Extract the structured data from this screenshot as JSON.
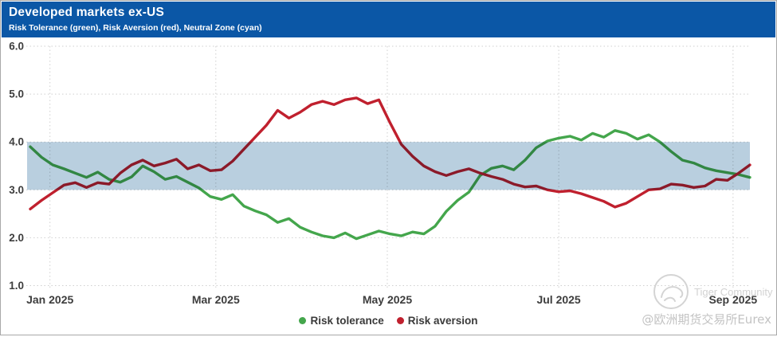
{
  "colors": {
    "header_bg": "#0b57a6",
    "band": "#b9cfdf",
    "grid": "#cfcfcf",
    "axis_text": "#3d3d3d",
    "border": "#a8a8a8",
    "green": "#44a64c",
    "red": "#c0202e",
    "watermark": "#d2d2d2"
  },
  "watermark": {
    "brand": "Tiger Community",
    "handle": "@欧洲期货交易所Eurex",
    "logo": "tiger-logo"
  },
  "chart_data": {
    "type": "line",
    "title": "Developed markets ex-US",
    "subtitle": "Risk Tolerance (green), Risk Aversion (red), Neutral Zone (cyan)",
    "xlabel": "",
    "ylabel": "",
    "ylim": [
      1.0,
      6.0
    ],
    "y_ticks": [
      6,
      5,
      4,
      3,
      2,
      1
    ],
    "y_tick_labels": [
      "6.0",
      "5.0",
      "4.0",
      "3.0",
      "2.0",
      "1.0"
    ],
    "x_ticks": [
      "Jan 2025",
      "Mar 2025",
      "May 2025",
      "Jul 2025",
      "Sep 2025"
    ],
    "x_tick_dates": [
      "2025-01-01",
      "2025-03-01",
      "2025-05-01",
      "2025-07-01",
      "2025-09-01"
    ],
    "x_range": [
      "2024-12-25",
      "2025-09-07"
    ],
    "grid": "dotted",
    "legend_position": "bottom-center",
    "neutral_zone": {
      "label": "Neutral Zone",
      "from": 3.0,
      "to": 4.0,
      "color": "#b9cfdf"
    },
    "dates": [
      "2024-12-25",
      "2024-12-29",
      "2025-01-02",
      "2025-01-06",
      "2025-01-10",
      "2025-01-14",
      "2025-01-18",
      "2025-01-22",
      "2025-01-26",
      "2025-01-30",
      "2025-02-03",
      "2025-02-07",
      "2025-02-11",
      "2025-02-15",
      "2025-02-19",
      "2025-02-23",
      "2025-02-27",
      "2025-03-03",
      "2025-03-07",
      "2025-03-11",
      "2025-03-15",
      "2025-03-19",
      "2025-03-23",
      "2025-03-27",
      "2025-03-31",
      "2025-04-04",
      "2025-04-08",
      "2025-04-12",
      "2025-04-16",
      "2025-04-20",
      "2025-04-24",
      "2025-04-28",
      "2025-05-02",
      "2025-05-06",
      "2025-05-10",
      "2025-05-14",
      "2025-05-18",
      "2025-05-22",
      "2025-05-26",
      "2025-05-30",
      "2025-06-03",
      "2025-06-07",
      "2025-06-11",
      "2025-06-15",
      "2025-06-19",
      "2025-06-23",
      "2025-06-27",
      "2025-07-01",
      "2025-07-05",
      "2025-07-09",
      "2025-07-13",
      "2025-07-17",
      "2025-07-21",
      "2025-07-25",
      "2025-07-29",
      "2025-08-02",
      "2025-08-06",
      "2025-08-10",
      "2025-08-14",
      "2025-08-18",
      "2025-08-22",
      "2025-08-26",
      "2025-08-30",
      "2025-09-03",
      "2025-09-07"
    ],
    "series": [
      {
        "name": "Risk tolerance",
        "color": "#44a64c",
        "values": [
          3.9,
          3.68,
          3.52,
          3.44,
          3.35,
          3.26,
          3.37,
          3.22,
          3.16,
          3.27,
          3.5,
          3.38,
          3.22,
          3.28,
          3.16,
          3.04,
          2.86,
          2.8,
          2.9,
          2.66,
          2.56,
          2.48,
          2.32,
          2.4,
          2.22,
          2.12,
          2.04,
          2.0,
          2.1,
          1.98,
          2.06,
          2.14,
          2.08,
          2.04,
          2.12,
          2.08,
          2.24,
          2.55,
          2.78,
          2.95,
          3.3,
          3.45,
          3.5,
          3.42,
          3.62,
          3.88,
          4.02,
          4.08,
          4.12,
          4.04,
          4.18,
          4.1,
          4.24,
          4.18,
          4.06,
          4.15,
          4.0,
          3.8,
          3.62,
          3.56,
          3.46,
          3.4,
          3.36,
          3.32,
          3.26
        ]
      },
      {
        "name": "Risk aversion",
        "color": "#c0202e",
        "values": [
          2.6,
          2.78,
          2.94,
          3.1,
          3.15,
          3.05,
          3.15,
          3.12,
          3.35,
          3.52,
          3.62,
          3.5,
          3.56,
          3.64,
          3.44,
          3.52,
          3.4,
          3.42,
          3.6,
          3.85,
          4.1,
          4.35,
          4.66,
          4.5,
          4.62,
          4.78,
          4.85,
          4.78,
          4.88,
          4.92,
          4.8,
          4.88,
          4.4,
          3.95,
          3.7,
          3.5,
          3.38,
          3.3,
          3.38,
          3.44,
          3.35,
          3.28,
          3.22,
          3.12,
          3.06,
          3.08,
          3.0,
          2.96,
          2.98,
          2.92,
          2.84,
          2.76,
          2.64,
          2.72,
          2.86,
          3.0,
          3.02,
          3.12,
          3.1,
          3.05,
          3.08,
          3.22,
          3.2,
          3.35,
          3.52
        ]
      }
    ]
  }
}
